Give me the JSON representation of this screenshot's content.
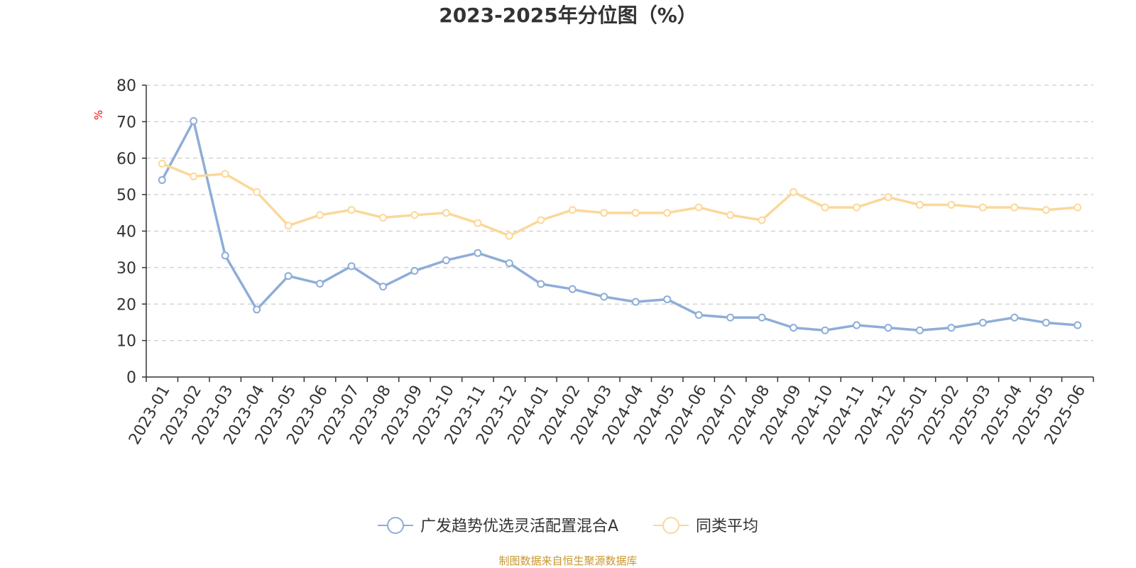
{
  "chart_data": {
    "type": "line",
    "title": "2023-2025年分位图（%）",
    "ylabel": "%",
    "ylim": [
      0,
      80
    ],
    "yticks": [
      0,
      10,
      20,
      30,
      40,
      50,
      60,
      70,
      80
    ],
    "grid": true,
    "legend_position": "bottom",
    "categories": [
      "2023-01",
      "2023-02",
      "2023-03",
      "2023-04",
      "2023-05",
      "2023-06",
      "2023-07",
      "2023-08",
      "2023-09",
      "2023-10",
      "2023-11",
      "2023-12",
      "2024-01",
      "2024-02",
      "2024-03",
      "2024-04",
      "2024-05",
      "2024-06",
      "2024-07",
      "2024-08",
      "2024-09",
      "2024-10",
      "2024-11",
      "2024-12",
      "2025-01",
      "2025-02",
      "2025-03",
      "2025-04",
      "2025-05",
      "2025-06"
    ],
    "series": [
      {
        "name": "广发趋势优选灵活配置混合A",
        "color": "#8eadd8",
        "values": [
          54.0,
          70.2,
          33.3,
          18.5,
          27.7,
          25.6,
          30.4,
          24.8,
          29.1,
          32.0,
          34.0,
          31.2,
          25.5,
          24.1,
          22.0,
          20.6,
          21.3,
          17.0,
          16.3,
          16.3,
          13.5,
          12.8,
          14.2,
          13.5,
          12.8,
          13.5,
          14.9,
          16.3,
          14.9,
          14.2
        ]
      },
      {
        "name": "同类平均",
        "color": "#fbd898",
        "values": [
          58.5,
          55.0,
          55.7,
          50.7,
          41.5,
          44.4,
          45.8,
          43.7,
          44.4,
          45.0,
          42.2,
          38.7,
          43.0,
          45.8,
          45.0,
          45.0,
          45.0,
          46.5,
          44.4,
          43.0,
          50.7,
          46.5,
          46.5,
          49.3,
          47.2,
          47.2,
          46.5,
          46.5,
          45.8,
          46.5
        ]
      }
    ]
  },
  "footer": {
    "source": "制图数据来自恒生聚源数据库"
  }
}
